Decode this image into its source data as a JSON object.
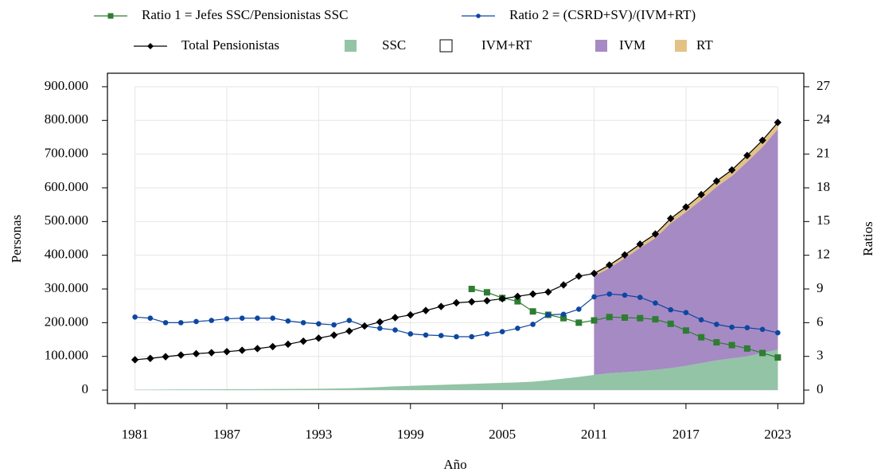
{
  "chart_data": {
    "type": "line",
    "x_label": "Año",
    "y_label": "Personas",
    "y2_label": "Ratios",
    "x": [
      1981,
      1982,
      1983,
      1984,
      1985,
      1986,
      1987,
      1988,
      1989,
      1990,
      1991,
      1992,
      1993,
      1994,
      1995,
      1996,
      1997,
      1998,
      1999,
      2000,
      2001,
      2002,
      2003,
      2004,
      2005,
      2006,
      2007,
      2008,
      2009,
      2010,
      2011,
      2012,
      2013,
      2014,
      2015,
      2016,
      2017,
      2018,
      2019,
      2020,
      2021,
      2022,
      2023
    ],
    "xlim": [
      1979.2,
      2024.7
    ],
    "xticks": [
      1981,
      1987,
      1993,
      1999,
      2005,
      2011,
      2017,
      2023
    ],
    "ylim": [
      -40000,
      940000
    ],
    "yticks": [
      0,
      {
        "value": 100000,
        "label": "100.000"
      },
      {
        "value": 200000,
        "label": "200.000"
      },
      {
        "value": 300000,
        "label": "300.000"
      },
      {
        "value": 400000,
        "label": "400.000"
      },
      {
        "value": 500000,
        "label": "500.000"
      },
      {
        "value": 600000,
        "label": "600.000"
      },
      {
        "value": 700000,
        "label": "700.000"
      },
      {
        "value": 800000,
        "label": "800.000"
      },
      {
        "value": 900000,
        "label": "900.000"
      }
    ],
    "y2lim": [
      -1.2,
      28.2
    ],
    "y2ticks": [
      0,
      3,
      6,
      9,
      12,
      15,
      18,
      21,
      24,
      27
    ],
    "grid": true,
    "series": [
      {
        "name": "Ratio 1 = Jefes SSC/Pensionistas SSC",
        "color": "#2e7d32",
        "kind": "line",
        "marker": "square",
        "axis": "y2",
        "values": [
          null,
          null,
          null,
          null,
          null,
          null,
          null,
          null,
          null,
          null,
          null,
          null,
          null,
          null,
          null,
          null,
          null,
          null,
          null,
          null,
          null,
          null,
          9.0,
          8.7,
          8.2,
          7.9,
          7.0,
          6.7,
          6.4,
          6.0,
          6.2,
          6.5,
          6.45,
          6.4,
          6.3,
          5.9,
          5.3,
          4.7,
          4.25,
          4.0,
          3.7,
          3.3,
          2.9
        ]
      },
      {
        "name": "Ratio 2 = (CSRD+SV)/(IVM+RT)",
        "color": "#0d47a1",
        "kind": "line",
        "marker": "circle",
        "axis": "y2",
        "values": [
          6.5,
          6.4,
          6.0,
          6.0,
          6.1,
          6.2,
          6.35,
          6.4,
          6.4,
          6.4,
          6.15,
          6.0,
          5.9,
          5.8,
          6.2,
          5.7,
          5.5,
          5.35,
          5.0,
          4.9,
          4.85,
          4.75,
          4.75,
          5.0,
          5.2,
          5.5,
          5.85,
          6.7,
          6.75,
          7.2,
          8.3,
          8.55,
          8.45,
          8.25,
          7.75,
          7.15,
          6.9,
          6.25,
          5.85,
          5.6,
          5.55,
          5.4,
          5.1
        ]
      },
      {
        "name": "Total Pensionistas",
        "color": "#000000",
        "kind": "line",
        "marker": "diamond",
        "values": [
          90000,
          94000,
          99000,
          104000,
          108000,
          111000,
          114000,
          118000,
          123000,
          129000,
          136000,
          145000,
          154000,
          163000,
          175000,
          190000,
          202000,
          215000,
          223000,
          236000,
          248000,
          259000,
          262000,
          265000,
          271000,
          278000,
          285000,
          291000,
          312000,
          338000,
          346000,
          371000,
          401000,
          433000,
          463000,
          509000,
          543000,
          580000,
          620000,
          653000,
          696000,
          741000,
          794000
        ]
      },
      {
        "name": "SSC",
        "color": "#93c4a6",
        "kind": "area",
        "values": [
          1000,
          1200,
          1500,
          1800,
          2000,
          2200,
          2400,
          2600,
          2800,
          3000,
          3300,
          3600,
          4000,
          4500,
          5500,
          7000,
          9000,
          11000,
          12500,
          14000,
          15500,
          17000,
          18500,
          20000,
          21500,
          23000,
          25000,
          29000,
          34000,
          39000,
          45000,
          50000,
          53000,
          56000,
          60000,
          65000,
          72000,
          80000,
          88000,
          94000,
          100000,
          110000,
          120000
        ]
      },
      {
        "name": "IVM+RT",
        "color": "#ffffff",
        "kind": "area"
      },
      {
        "name": "IVM",
        "color": "#a68ac4",
        "kind": "area",
        "values": [
          null,
          null,
          null,
          null,
          null,
          null,
          null,
          null,
          null,
          null,
          null,
          null,
          null,
          null,
          null,
          null,
          null,
          null,
          null,
          null,
          null,
          null,
          null,
          null,
          null,
          null,
          null,
          null,
          null,
          null,
          293000,
          312000,
          338000,
          366000,
          391000,
          430000,
          456000,
          484000,
          515000,
          541000,
          577000,
          611000,
          654000
        ]
      },
      {
        "name": "RT",
        "color": "#e3c285",
        "kind": "area",
        "values": [
          null,
          null,
          null,
          null,
          null,
          null,
          null,
          null,
          null,
          null,
          null,
          null,
          null,
          null,
          null,
          null,
          null,
          null,
          null,
          null,
          null,
          null,
          null,
          null,
          null,
          null,
          null,
          null,
          null,
          null,
          8000,
          9000,
          10000,
          11000,
          12000,
          14000,
          15000,
          16000,
          17000,
          18000,
          19000,
          20000,
          20000
        ]
      }
    ]
  }
}
